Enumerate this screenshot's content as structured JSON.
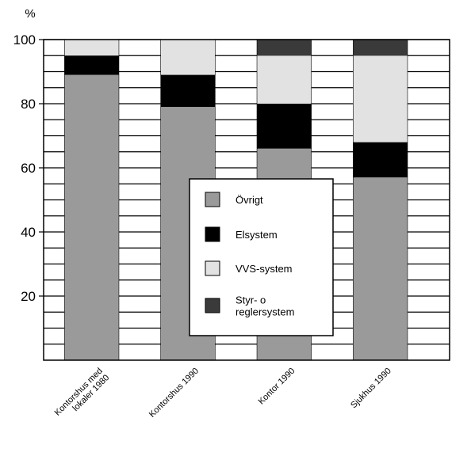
{
  "chart_data": {
    "type": "bar",
    "stacked": true,
    "ylabel": "%",
    "ylim": [
      0,
      100
    ],
    "yticks": [
      20,
      40,
      60,
      80,
      100
    ],
    "grid": true,
    "categories": [
      [
        "Kontorshus med",
        "lokaler 1980"
      ],
      [
        "Kontorshus 1990"
      ],
      [
        "Kontor 1990"
      ],
      [
        "Sjukhus 1990"
      ]
    ],
    "series": [
      {
        "name": "Övrigt",
        "color": "#9a9a9a",
        "values": [
          89,
          79,
          66,
          57
        ]
      },
      {
        "name": "Elsystem",
        "color": "#000000",
        "values": [
          6,
          10,
          14,
          11
        ]
      },
      {
        "name": "VVS-system",
        "color": "#e2e2e2",
        "values": [
          5,
          11,
          15,
          27
        ]
      },
      {
        "name": "Styr- o reglersystem",
        "color": "#3a3a3a",
        "values": [
          0,
          0,
          5,
          5
        ]
      }
    ],
    "legend_position": "center"
  }
}
